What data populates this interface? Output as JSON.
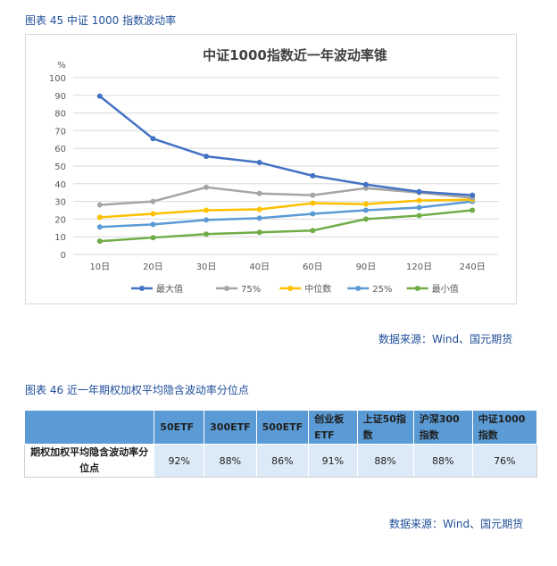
{
  "caption_top": "图表 45  中证 1000 指数波动率",
  "caption_bottom": "图表 46  近一年期权加权平均隐含波动率分位点",
  "source_top": "数据来源：Wind、国元期货",
  "source_bottom": "数据来源：Wind、国元期货",
  "chart_data": {
    "type": "line",
    "title": "中证1000指数近一年波动率锥",
    "ylabel": "%",
    "ylim": [
      0,
      100
    ],
    "yticks": [
      0,
      10,
      20,
      30,
      40,
      50,
      60,
      70,
      80,
      90,
      100
    ],
    "categories": [
      "10日",
      "20日",
      "30日",
      "40日",
      "60日",
      "90日",
      "120日",
      "240日"
    ],
    "grid": true,
    "legend_position": "bottom",
    "series": [
      {
        "name": "最大值",
        "color": "#4472c4",
        "values": [
          89.5,
          65.5,
          55.5,
          52.0,
          44.5,
          39.5,
          35.5,
          33.5
        ]
      },
      {
        "name": "75%",
        "color": "#a5a5a5",
        "values": [
          28.0,
          30.0,
          38.0,
          34.5,
          33.5,
          37.5,
          35.0,
          32.0
        ]
      },
      {
        "name": "中位数",
        "color": "#ffc000",
        "values": [
          21.0,
          23.0,
          25.0,
          25.5,
          29.0,
          28.5,
          30.5,
          31.0
        ]
      },
      {
        "name": "25%",
        "color": "#5b9bd5",
        "values": [
          15.5,
          17.0,
          19.5,
          20.5,
          23.0,
          25.0,
          26.5,
          30.0
        ]
      },
      {
        "name": "最小值",
        "color": "#70ad47",
        "values": [
          7.5,
          9.5,
          11.5,
          12.5,
          13.5,
          20.0,
          22.0,
          25.0
        ]
      }
    ]
  },
  "table": {
    "headers": [
      "",
      "50ETF",
      "300ETF",
      "500ETF",
      "创业板ETF",
      "上证50指数",
      "沪深300指数",
      "中证1000指数"
    ],
    "row_label": "期权加权平均隐含波动率分位点",
    "values": [
      "92%",
      "88%",
      "86%",
      "91%",
      "88%",
      "88%",
      "76%"
    ]
  }
}
